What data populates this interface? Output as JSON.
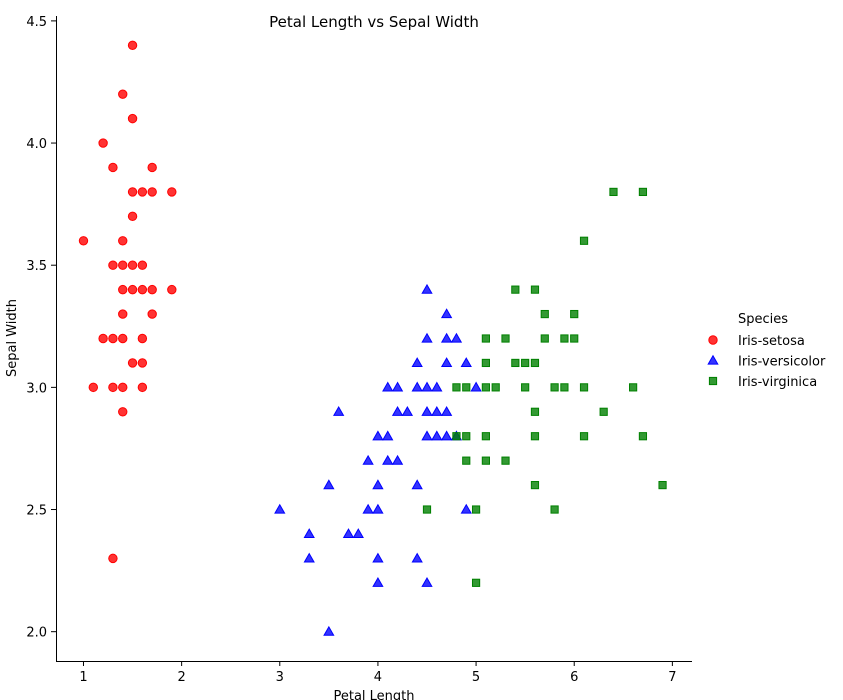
{
  "chart_data": {
    "type": "scatter",
    "title": "Petal Length vs Sepal Width",
    "xlabel": "Petal Length",
    "ylabel": "Sepal Width",
    "xlim": [
      0.72,
      7.2
    ],
    "ylim": [
      1.88,
      4.52
    ],
    "xticks": [
      1,
      2,
      3,
      4,
      5,
      6,
      7
    ],
    "yticks": [
      2.0,
      2.5,
      3.0,
      3.5,
      4.0,
      4.5
    ],
    "xtick_labels": [
      "1",
      "2",
      "3",
      "4",
      "5",
      "6",
      "7"
    ],
    "ytick_labels": [
      "2.0",
      "2.5",
      "3.0",
      "3.5",
      "4.0",
      "4.5"
    ],
    "grid": false,
    "legend": {
      "title": "Species",
      "placement": "right"
    },
    "series": [
      {
        "name": "Iris-setosa",
        "color": "#ff0000",
        "marker": "circle",
        "points": [
          [
            1.5,
            4.4
          ],
          [
            1.4,
            4.2
          ],
          [
            1.5,
            4.1
          ],
          [
            1.2,
            4.0
          ],
          [
            1.3,
            3.9
          ],
          [
            1.7,
            3.9
          ],
          [
            1.5,
            3.8
          ],
          [
            1.6,
            3.8
          ],
          [
            1.7,
            3.8
          ],
          [
            1.9,
            3.8
          ],
          [
            1.5,
            3.7
          ],
          [
            1.4,
            3.6
          ],
          [
            1.0,
            3.6
          ],
          [
            1.3,
            3.5
          ],
          [
            1.4,
            3.5
          ],
          [
            1.5,
            3.5
          ],
          [
            1.6,
            3.5
          ],
          [
            1.4,
            3.4
          ],
          [
            1.5,
            3.4
          ],
          [
            1.6,
            3.4
          ],
          [
            1.7,
            3.4
          ],
          [
            1.9,
            3.4
          ],
          [
            1.4,
            3.3
          ],
          [
            1.7,
            3.3
          ],
          [
            1.2,
            3.2
          ],
          [
            1.3,
            3.2
          ],
          [
            1.4,
            3.2
          ],
          [
            1.6,
            3.2
          ],
          [
            1.5,
            3.1
          ],
          [
            1.6,
            3.1
          ],
          [
            1.1,
            3.0
          ],
          [
            1.3,
            3.0
          ],
          [
            1.4,
            3.0
          ],
          [
            1.6,
            3.0
          ],
          [
            1.4,
            2.9
          ],
          [
            1.3,
            2.3
          ]
        ]
      },
      {
        "name": "Iris-versicolor",
        "color": "#0000ff",
        "marker": "triangle",
        "points": [
          [
            4.5,
            3.4
          ],
          [
            4.7,
            3.3
          ],
          [
            4.5,
            3.2
          ],
          [
            4.7,
            3.2
          ],
          [
            4.8,
            3.2
          ],
          [
            4.4,
            3.1
          ],
          [
            4.7,
            3.1
          ],
          [
            4.9,
            3.1
          ],
          [
            4.1,
            3.0
          ],
          [
            4.2,
            3.0
          ],
          [
            4.4,
            3.0
          ],
          [
            4.5,
            3.0
          ],
          [
            4.6,
            3.0
          ],
          [
            5.0,
            3.0
          ],
          [
            3.6,
            2.9
          ],
          [
            4.2,
            2.9
          ],
          [
            4.3,
            2.9
          ],
          [
            4.5,
            2.9
          ],
          [
            4.6,
            2.9
          ],
          [
            4.7,
            2.9
          ],
          [
            4.0,
            2.8
          ],
          [
            4.1,
            2.8
          ],
          [
            4.5,
            2.8
          ],
          [
            4.6,
            2.8
          ],
          [
            4.7,
            2.8
          ],
          [
            4.8,
            2.8
          ],
          [
            3.9,
            2.7
          ],
          [
            4.1,
            2.7
          ],
          [
            4.2,
            2.7
          ],
          [
            3.5,
            2.6
          ],
          [
            4.0,
            2.6
          ],
          [
            4.4,
            2.6
          ],
          [
            3.0,
            2.5
          ],
          [
            3.9,
            2.5
          ],
          [
            4.0,
            2.5
          ],
          [
            4.9,
            2.5
          ],
          [
            3.3,
            2.4
          ],
          [
            3.7,
            2.4
          ],
          [
            3.8,
            2.4
          ],
          [
            3.3,
            2.3
          ],
          [
            4.0,
            2.3
          ],
          [
            4.4,
            2.3
          ],
          [
            4.0,
            2.2
          ],
          [
            4.5,
            2.2
          ],
          [
            3.5,
            2.0
          ]
        ]
      },
      {
        "name": "Iris-virginica",
        "color": "#008000",
        "marker": "square",
        "points": [
          [
            6.4,
            3.8
          ],
          [
            6.7,
            3.8
          ],
          [
            6.1,
            3.6
          ],
          [
            5.4,
            3.4
          ],
          [
            5.6,
            3.4
          ],
          [
            5.7,
            3.3
          ],
          [
            6.0,
            3.3
          ],
          [
            5.1,
            3.2
          ],
          [
            5.3,
            3.2
          ],
          [
            5.7,
            3.2
          ],
          [
            5.9,
            3.2
          ],
          [
            6.0,
            3.2
          ],
          [
            5.1,
            3.1
          ],
          [
            5.4,
            3.1
          ],
          [
            5.5,
            3.1
          ],
          [
            5.6,
            3.1
          ],
          [
            4.8,
            3.0
          ],
          [
            4.9,
            3.0
          ],
          [
            5.1,
            3.0
          ],
          [
            5.2,
            3.0
          ],
          [
            5.5,
            3.0
          ],
          [
            5.8,
            3.0
          ],
          [
            5.9,
            3.0
          ],
          [
            6.1,
            3.0
          ],
          [
            6.6,
            3.0
          ],
          [
            5.6,
            2.9
          ],
          [
            6.3,
            2.9
          ],
          [
            4.8,
            2.8
          ],
          [
            4.9,
            2.8
          ],
          [
            5.1,
            2.8
          ],
          [
            5.6,
            2.8
          ],
          [
            6.1,
            2.8
          ],
          [
            6.7,
            2.8
          ],
          [
            4.9,
            2.7
          ],
          [
            5.1,
            2.7
          ],
          [
            5.3,
            2.7
          ],
          [
            5.6,
            2.6
          ],
          [
            6.9,
            2.6
          ],
          [
            4.5,
            2.5
          ],
          [
            5.0,
            2.5
          ],
          [
            5.8,
            2.5
          ],
          [
            5.0,
            2.2
          ]
        ]
      }
    ]
  }
}
